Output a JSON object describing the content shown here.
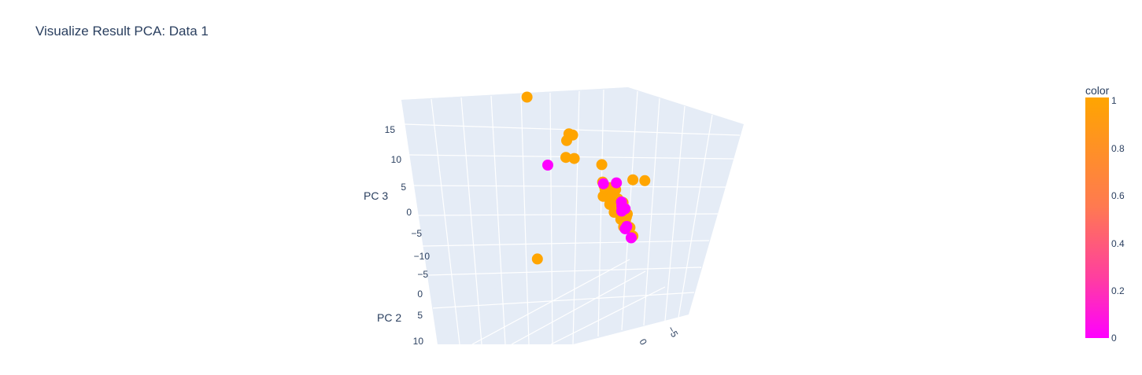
{
  "chart_data": {
    "type": "scatter",
    "title": "Visualize Result PCA: Data 1",
    "axes": {
      "z_label": "PC 3",
      "y_label": "PC 2",
      "z_ticks": [
        "15",
        "10",
        "5",
        "0",
        "−5",
        "−10"
      ],
      "y_ticks": [
        "−5",
        "0",
        "5",
        "10"
      ],
      "x_ticks": [
        "0",
        "−5"
      ]
    },
    "colorbar": {
      "title": "color",
      "range": [
        0,
        1
      ],
      "ticks": [
        "1",
        "0.8",
        "0.6",
        "0.4",
        "0.2",
        "0"
      ],
      "color_low": "#ff00ff",
      "color_high": "#ffa500"
    },
    "series": [
      {
        "value": 1,
        "points": [
          {
            "x": -3.4,
            "y": -7.0,
            "z": 17.2
          },
          {
            "x": -1.2,
            "y": -3.6,
            "z": 12.2
          },
          {
            "x": -1.0,
            "y": -3.3,
            "z": 12.1
          },
          {
            "x": -1.3,
            "y": -3.8,
            "z": 11.0
          },
          {
            "x": -1.4,
            "y": -3.8,
            "z": 8.2
          },
          {
            "x": -0.9,
            "y": -3.2,
            "z": 8.2
          },
          {
            "x": 0.3,
            "y": -0.7,
            "z": 8.1
          },
          {
            "x": 1.4,
            "y": 2.4,
            "z": 6.8
          },
          {
            "x": 2.0,
            "y": 3.4,
            "z": 7.0
          },
          {
            "x": -0.6,
            "y": 0.4,
            "z": 5.9
          },
          {
            "x": -0.5,
            "y": 0.5,
            "z": 5.3
          },
          {
            "x": -0.2,
            "y": 0.3,
            "z": 4.5
          },
          {
            "x": 0.1,
            "y": 0.6,
            "z": 4.9
          },
          {
            "x": 0.3,
            "y": 0.9,
            "z": 5.0
          },
          {
            "x": 0.5,
            "y": 1.0,
            "z": 4.7
          },
          {
            "x": -0.8,
            "y": 0.7,
            "z": 3.7
          },
          {
            "x": -0.5,
            "y": 1.0,
            "z": 3.6
          },
          {
            "x": -0.1,
            "y": 1.0,
            "z": 3.4
          },
          {
            "x": 0.3,
            "y": 0.9,
            "z": 3.9
          },
          {
            "x": 0.6,
            "y": 1.2,
            "z": 3.2
          },
          {
            "x": -0.7,
            "y": 1.5,
            "z": 2.7
          },
          {
            "x": -0.3,
            "y": 1.6,
            "z": 2.5
          },
          {
            "x": 0.1,
            "y": 1.4,
            "z": 2.6
          },
          {
            "x": 0.5,
            "y": 1.8,
            "z": 2.2
          },
          {
            "x": 0.8,
            "y": 1.7,
            "z": 2.8
          },
          {
            "x": -0.6,
            "y": 2.0,
            "z": 1.6
          },
          {
            "x": -0.2,
            "y": 2.2,
            "z": 1.5
          },
          {
            "x": 0.2,
            "y": 2.1,
            "z": 1.7
          },
          {
            "x": 0.6,
            "y": 2.5,
            "z": 1.3
          },
          {
            "x": -0.4,
            "y": 2.7,
            "z": 0.7
          },
          {
            "x": 0.0,
            "y": 2.9,
            "z": 0.5
          },
          {
            "x": 0.4,
            "y": 2.6,
            "z": 0.9
          },
          {
            "x": -0.5,
            "y": 3.2,
            "z": -0.3
          },
          {
            "x": 0.2,
            "y": 3.3,
            "z": -0.5
          },
          {
            "x": 0.3,
            "y": 3.6,
            "z": -1.8
          },
          {
            "x": -3.0,
            "y": -6.0,
            "z": -9.5
          }
        ]
      },
      {
        "value": 0,
        "points": [
          {
            "x": -2.6,
            "y": -5.0,
            "z": 6.6
          },
          {
            "x": -0.5,
            "y": 0.4,
            "z": 5.6
          },
          {
            "x": 0.6,
            "y": 1.0,
            "z": 5.8
          },
          {
            "x": 0.5,
            "y": 1.8,
            "z": 3.0
          },
          {
            "x": 0.5,
            "y": 2.3,
            "z": 2.1
          },
          {
            "x": 0.0,
            "y": 2.4,
            "z": 2.7
          },
          {
            "x": -0.2,
            "y": 2.6,
            "z": 2.0
          },
          {
            "x": -0.4,
            "y": 3.3,
            "z": -0.6
          },
          {
            "x": -0.1,
            "y": 3.2,
            "z": -0.3
          },
          {
            "x": 0.0,
            "y": 3.7,
            "z": -2.0
          }
        ]
      }
    ]
  }
}
